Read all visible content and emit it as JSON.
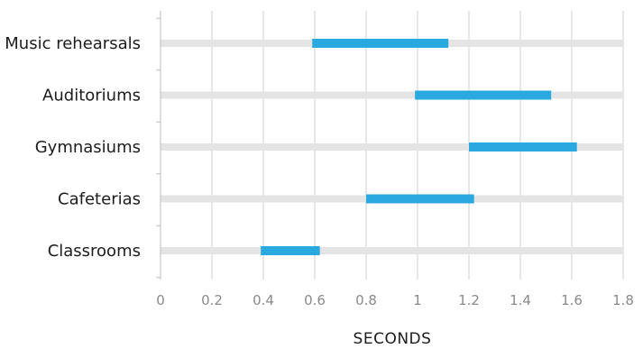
{
  "chart_data": {
    "type": "range-bar",
    "categories": [
      "Music rehearsals",
      "Auditoriums",
      "Gymnasiums",
      "Cafeterias",
      "Classrooms"
    ],
    "series": [
      {
        "ranges": [
          [
            0.59,
            1.12
          ],
          [
            0.99,
            1.52
          ],
          [
            1.2,
            1.62
          ],
          [
            0.8,
            1.22
          ],
          [
            0.39,
            0.62
          ]
        ]
      }
    ],
    "xlabel": "SECONDS",
    "ylabel": "",
    "title": "",
    "xlim": [
      0,
      1.8
    ],
    "xticks": [
      "0",
      "0.2",
      "0.4",
      "0.6",
      "0.8",
      "1",
      "1.2",
      "1.4",
      "1.6",
      "1.8"
    ],
    "grid": true,
    "colors": {
      "range_bar": "#2aa9e0",
      "track": "#e4e4e4",
      "gridline": "#cfcfcf",
      "axis": "#bdbdbd"
    }
  }
}
